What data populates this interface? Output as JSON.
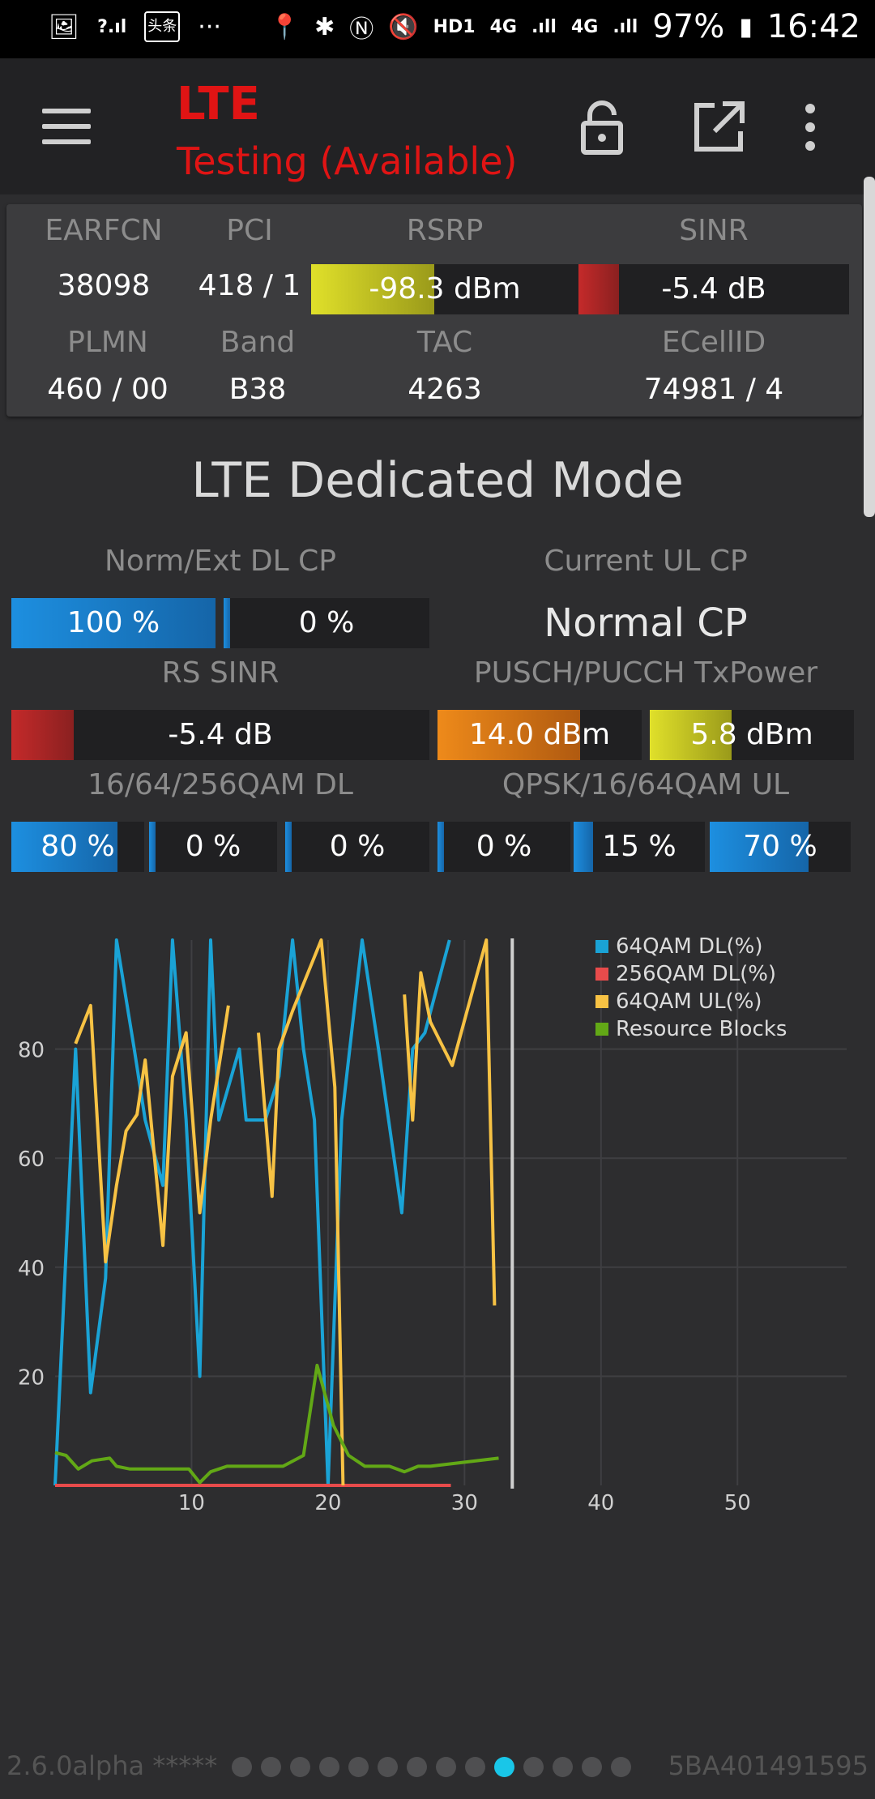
{
  "status_bar": {
    "network": "4G",
    "battery": "97%",
    "time": "16:42",
    "hd": "HD1",
    "app_badge": "头条"
  },
  "app_bar": {
    "title": "LTE",
    "subtitle": "Testing (Available)"
  },
  "cell_info": {
    "earfcn": {
      "label": "EARFCN",
      "value": "38098"
    },
    "pci": {
      "label": "PCI",
      "value": "418 / 1"
    },
    "rsrp": {
      "label": "RSRP",
      "value": "-98.3 dBm",
      "level": 0.46,
      "color": "#d8d82a"
    },
    "sinr": {
      "label": "SINR",
      "value": "-5.4 dB",
      "level": 0.15,
      "color": "#c42a2a"
    },
    "plmn": {
      "label": "PLMN",
      "value": "460 / 00"
    },
    "band": {
      "label": "Band",
      "value": "B38"
    },
    "tac": {
      "label": "TAC",
      "value": "4263"
    },
    "ecellid": {
      "label": "ECellID",
      "value": "74981 / 4"
    }
  },
  "dedicated": {
    "heading": "LTE Dedicated Mode",
    "norm_ext_label": "Norm/Ext DL CP",
    "norm_value": "100 %",
    "norm_level": 1.0,
    "ext_value": "0 %",
    "ext_level": 0.0,
    "ul_cp_label": "Current UL CP",
    "ul_cp_value": "Normal CP",
    "rs_sinr_label": "RS SINR",
    "rs_sinr_value": "-5.4 dB",
    "rs_sinr_level": 0.15,
    "txpower_label": "PUSCH/PUCCH TxPower",
    "pusch_value": "14.0 dBm",
    "pusch_level": 0.7,
    "pucch_value": "5.8 dBm",
    "pucch_level": 0.4,
    "dl_qam_label": "16/64/256QAM DL",
    "dl16_value": "80 %",
    "dl16_level": 0.8,
    "dl64_value": "0 %",
    "dl64_level": 0.0,
    "dl256_value": "0 %",
    "dl256_level": 0.0,
    "ul_qam_label": "QPSK/16/64QAM UL",
    "ulqpsk_value": "0 %",
    "ulqpsk_level": 0.0,
    "ul16_value": "15 %",
    "ul16_level": 0.15,
    "ul64_value": "70 %",
    "ul64_level": 0.7
  },
  "chart_data": {
    "type": "line",
    "xlim": [
      0,
      58
    ],
    "ylim": [
      0,
      100
    ],
    "x_ticks": [
      "10",
      "20",
      "30",
      "40",
      "50"
    ],
    "y_ticks": [
      "20",
      "40",
      "60",
      "80"
    ],
    "grid": true,
    "legend_position": "top-right",
    "series": [
      {
        "name": "64QAM DL(%)",
        "color": "#1aa3d6",
        "points": [
          [
            0,
            0
          ],
          [
            1.5,
            80
          ],
          [
            2.6,
            17
          ],
          [
            3.7,
            38
          ],
          [
            4.5,
            100
          ],
          [
            5.8,
            80
          ],
          [
            6.6,
            67
          ],
          [
            7.9,
            55
          ],
          [
            8.6,
            100
          ],
          [
            9.6,
            67
          ],
          [
            10.6,
            20
          ],
          [
            11.4,
            100
          ],
          [
            12,
            67
          ],
          [
            13.5,
            80
          ],
          [
            14,
            67
          ],
          [
            15.4,
            67
          ],
          [
            16.4,
            75
          ],
          [
            17.4,
            100
          ],
          [
            18.2,
            80
          ],
          [
            19,
            67
          ],
          [
            20,
            0
          ],
          [
            21,
            67
          ],
          [
            22.5,
            100
          ],
          [
            23.7,
            80
          ],
          [
            25.4,
            50
          ],
          [
            26.2,
            80
          ],
          [
            27.1,
            83
          ],
          [
            28.9,
            100
          ]
        ]
      },
      {
        "name": "256QAM DL(%)",
        "color": "#e84b4b",
        "points": [
          [
            0,
            0
          ],
          [
            29,
            0
          ]
        ]
      },
      {
        "name": "64QAM UL(%)",
        "color": "#f7c244",
        "points": [
          [
            1.5,
            81
          ],
          [
            2.6,
            88
          ],
          [
            3.7,
            41
          ],
          [
            4.5,
            55
          ],
          [
            5.2,
            65
          ],
          [
            6,
            68
          ],
          [
            6.6,
            78
          ],
          [
            7.9,
            44
          ],
          [
            8.6,
            75
          ],
          [
            9.6,
            83
          ],
          [
            10.6,
            50
          ],
          [
            11.4,
            67
          ],
          [
            12.7,
            88
          ],
          [
            null,
            null
          ],
          [
            14.9,
            83
          ],
          [
            15.9,
            53
          ],
          [
            16.4,
            80
          ],
          [
            17.4,
            87
          ],
          [
            19.5,
            100
          ],
          [
            20.5,
            73
          ],
          [
            21.1,
            0
          ],
          [
            null,
            null
          ],
          [
            25.6,
            90
          ],
          [
            26.2,
            67
          ],
          [
            26.8,
            94
          ],
          [
            27.5,
            85
          ],
          [
            29.1,
            77
          ],
          [
            31.6,
            100
          ],
          [
            32.2,
            33
          ]
        ]
      },
      {
        "name": "Resource Blocks",
        "color": "#62a816",
        "points": [
          [
            0,
            6
          ],
          [
            0.8,
            5.5
          ],
          [
            1.7,
            3
          ],
          [
            2.7,
            4.5
          ],
          [
            4,
            5
          ],
          [
            4.5,
            3.5
          ],
          [
            5.5,
            3
          ],
          [
            7,
            3
          ],
          [
            8.6,
            3
          ],
          [
            9.8,
            3
          ],
          [
            10.6,
            0.5
          ],
          [
            11.4,
            2.5
          ],
          [
            12.6,
            3.5
          ],
          [
            14.5,
            3.5
          ],
          [
            16.7,
            3.5
          ],
          [
            18.2,
            5.5
          ],
          [
            19.2,
            22
          ],
          [
            20.4,
            11
          ],
          [
            21.5,
            5.5
          ],
          [
            22.7,
            3.5
          ],
          [
            24.5,
            3.5
          ],
          [
            25.6,
            2.5
          ],
          [
            26.6,
            3.5
          ],
          [
            27.5,
            3.5
          ],
          [
            32.5,
            5
          ]
        ]
      }
    ]
  },
  "footer": {
    "version": "2.6.0alpha *****",
    "serial": "5BA401491595",
    "page_count": 14,
    "page_active": 10
  }
}
